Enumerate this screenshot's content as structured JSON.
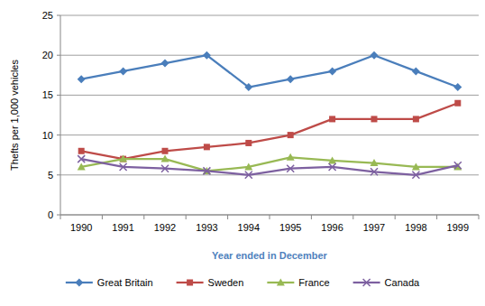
{
  "chart_data": {
    "type": "line",
    "x_label": "Year ended in December",
    "y_label": "Thefts per 1,000 vehicles",
    "categories": [
      "1990",
      "1991",
      "1992",
      "1993",
      "1994",
      "1995",
      "1996",
      "1997",
      "1998",
      "1999"
    ],
    "series": [
      {
        "name": "Great Britain",
        "color": "#4a7ebb",
        "marker": "diamond",
        "values": [
          17,
          18,
          19,
          20,
          16,
          17,
          18,
          20,
          18,
          16
        ]
      },
      {
        "name": "Sweden",
        "color": "#be4b48",
        "marker": "square",
        "values": [
          8,
          7,
          8,
          8.5,
          9,
          10,
          12,
          12,
          12,
          14
        ]
      },
      {
        "name": "France",
        "color": "#98b954",
        "marker": "triangle",
        "values": [
          6,
          7,
          7,
          5.5,
          6,
          7.2,
          6.8,
          6.5,
          6,
          6
        ]
      },
      {
        "name": "Canada",
        "color": "#7d60a0",
        "marker": "x",
        "values": [
          7,
          6,
          5.8,
          5.5,
          5,
          5.8,
          6,
          5.4,
          5,
          6.2
        ]
      }
    ],
    "ylim": [
      0,
      25
    ],
    "yticks": [
      0,
      5,
      10,
      15,
      20,
      25
    ],
    "grid": true,
    "legend": "bottom"
  }
}
